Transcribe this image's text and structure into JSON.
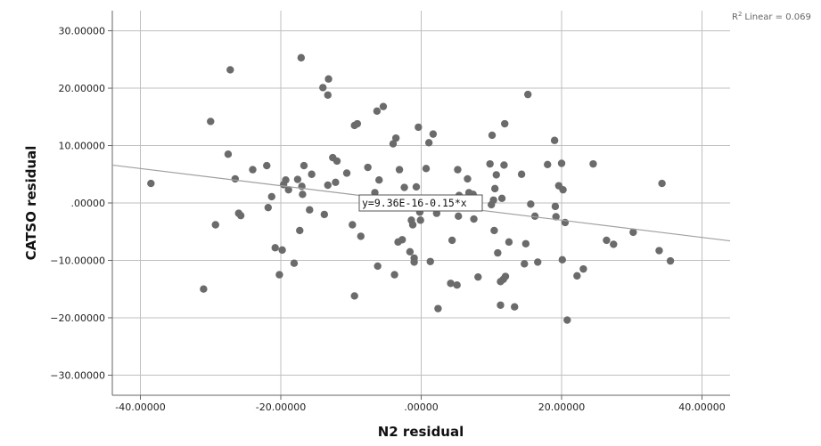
{
  "chart_data": {
    "type": "scatter",
    "xlabel": "N2 residual",
    "ylabel": "CATSO residual",
    "xlim": [
      -44,
      44
    ],
    "ylim": [
      -33.5,
      33.5
    ],
    "x_ticks": [
      -40,
      -20,
      0,
      20,
      40
    ],
    "x_tick_labels": [
      "-40.00000",
      "-20.00000",
      ".00000",
      "20.00000",
      "40.00000"
    ],
    "y_ticks": [
      30,
      20,
      10,
      0,
      -10,
      -20,
      -30
    ],
    "y_tick_labels": [
      "30.00000",
      "20.00000",
      "10.00000",
      ".00000",
      "−10.00000",
      "−20.00000",
      "−30.00000"
    ],
    "grid": true,
    "r2_label": "Linear = 0.069",
    "fit_line": {
      "intercept": 0.0,
      "slope": -0.15
    },
    "fit_equation": "y=9.36E-16-0.15*x",
    "marker_color": "#6b6b6b",
    "line_color": "#a0a0a0",
    "points": [
      [
        -38.5,
        3.4
      ],
      [
        -31,
        -15
      ],
      [
        -30,
        14.2
      ],
      [
        -29.3,
        -3.8
      ],
      [
        -27.5,
        8.5
      ],
      [
        -27.2,
        23.2
      ],
      [
        -26.5,
        4.2
      ],
      [
        -26,
        -1.8
      ],
      [
        -25.7,
        -2.2
      ],
      [
        -24,
        5.8
      ],
      [
        -22,
        6.5
      ],
      [
        -21.8,
        -0.8
      ],
      [
        -21.3,
        1.1
      ],
      [
        -20.8,
        -7.8
      ],
      [
        -20.2,
        -12.5
      ],
      [
        -19.8,
        -8.2
      ],
      [
        -19.6,
        3.2
      ],
      [
        -19.3,
        4
      ],
      [
        -18.9,
        2.3
      ],
      [
        -18.1,
        -10.5
      ],
      [
        -17.6,
        4.1
      ],
      [
        -17.3,
        -4.8
      ],
      [
        -17.1,
        25.3
      ],
      [
        -17,
        2.9
      ],
      [
        -16.9,
        1.5
      ],
      [
        -16.7,
        6.5
      ],
      [
        -15.9,
        -1.2
      ],
      [
        -15.6,
        5
      ],
      [
        -14,
        20.1
      ],
      [
        -13.8,
        -2
      ],
      [
        -13.3,
        18.8
      ],
      [
        -13.3,
        3.1
      ],
      [
        -13.2,
        21.6
      ],
      [
        -12.6,
        7.9
      ],
      [
        -12.2,
        3.6
      ],
      [
        -12,
        7.3
      ],
      [
        -10.6,
        5.2
      ],
      [
        -9.8,
        -3.8
      ],
      [
        -9.5,
        -16.2
      ],
      [
        -9.5,
        13.5
      ],
      [
        -9.1,
        13.8
      ],
      [
        -8.6,
        -5.8
      ],
      [
        -7.6,
        6.2
      ],
      [
        -6.6,
        1.8
      ],
      [
        -6.3,
        16
      ],
      [
        -6.2,
        -11
      ],
      [
        -6,
        4
      ],
      [
        -5.4,
        16.8
      ],
      [
        -4,
        10.3
      ],
      [
        -3.8,
        -12.5
      ],
      [
        -3.6,
        11.3
      ],
      [
        -3.3,
        -6.8
      ],
      [
        -3.1,
        5.8
      ],
      [
        -2.7,
        -6.4
      ],
      [
        -2.4,
        2.7
      ],
      [
        -1.6,
        -8.5
      ],
      [
        -1.4,
        -3
      ],
      [
        -1.2,
        -3.8
      ],
      [
        -1,
        -9.6
      ],
      [
        -1,
        -10.3
      ],
      [
        -0.7,
        2.8
      ],
      [
        -0.4,
        13.2
      ],
      [
        -0.2,
        -1.6
      ],
      [
        -0.1,
        -3
      ],
      [
        0.7,
        6
      ],
      [
        1.1,
        10.5
      ],
      [
        1.3,
        -10.2
      ],
      [
        1.7,
        12
      ],
      [
        2.2,
        -1.8
      ],
      [
        2.4,
        -18.4
      ],
      [
        4.2,
        -14
      ],
      [
        4.4,
        -6.5
      ],
      [
        5.1,
        -14.3
      ],
      [
        5.2,
        5.8
      ],
      [
        5.3,
        -2.3
      ],
      [
        5.4,
        1.3
      ],
      [
        6.6,
        4.2
      ],
      [
        6.8,
        1.8
      ],
      [
        7.4,
        1.5
      ],
      [
        7.5,
        -2.8
      ],
      [
        8.1,
        -12.9
      ],
      [
        9.8,
        6.8
      ],
      [
        10,
        -0.3
      ],
      [
        10.1,
        11.8
      ],
      [
        10.3,
        0.5
      ],
      [
        10.4,
        -4.8
      ],
      [
        10.5,
        2.5
      ],
      [
        10.7,
        4.9
      ],
      [
        10.9,
        -8.7
      ],
      [
        11.3,
        -17.8
      ],
      [
        11.3,
        -13.7
      ],
      [
        11.5,
        0.8
      ],
      [
        11.7,
        -13.3
      ],
      [
        11.8,
        6.6
      ],
      [
        11.9,
        13.8
      ],
      [
        12,
        -12.8
      ],
      [
        12.5,
        -6.8
      ],
      [
        13.3,
        -18.1
      ],
      [
        14.3,
        5
      ],
      [
        14.7,
        -10.6
      ],
      [
        14.9,
        -7.1
      ],
      [
        15.2,
        18.9
      ],
      [
        15.6,
        -0.2
      ],
      [
        16.2,
        -2.3
      ],
      [
        16.6,
        -10.3
      ],
      [
        18,
        6.7
      ],
      [
        19,
        10.9
      ],
      [
        19.1,
        -0.6
      ],
      [
        19.2,
        -2.4
      ],
      [
        19.6,
        3
      ],
      [
        20,
        6.9
      ],
      [
        20.1,
        -9.9
      ],
      [
        20.2,
        2.3
      ],
      [
        20.5,
        -3.4
      ],
      [
        20.8,
        -20.4
      ],
      [
        22.2,
        -12.7
      ],
      [
        23.1,
        -11.5
      ],
      [
        24.5,
        6.8
      ],
      [
        26.4,
        -6.5
      ],
      [
        27.4,
        -7.2
      ],
      [
        30.2,
        -5.1
      ],
      [
        33.9,
        -8.3
      ],
      [
        34.3,
        3.4
      ],
      [
        35.5,
        -10.1
      ]
    ]
  }
}
